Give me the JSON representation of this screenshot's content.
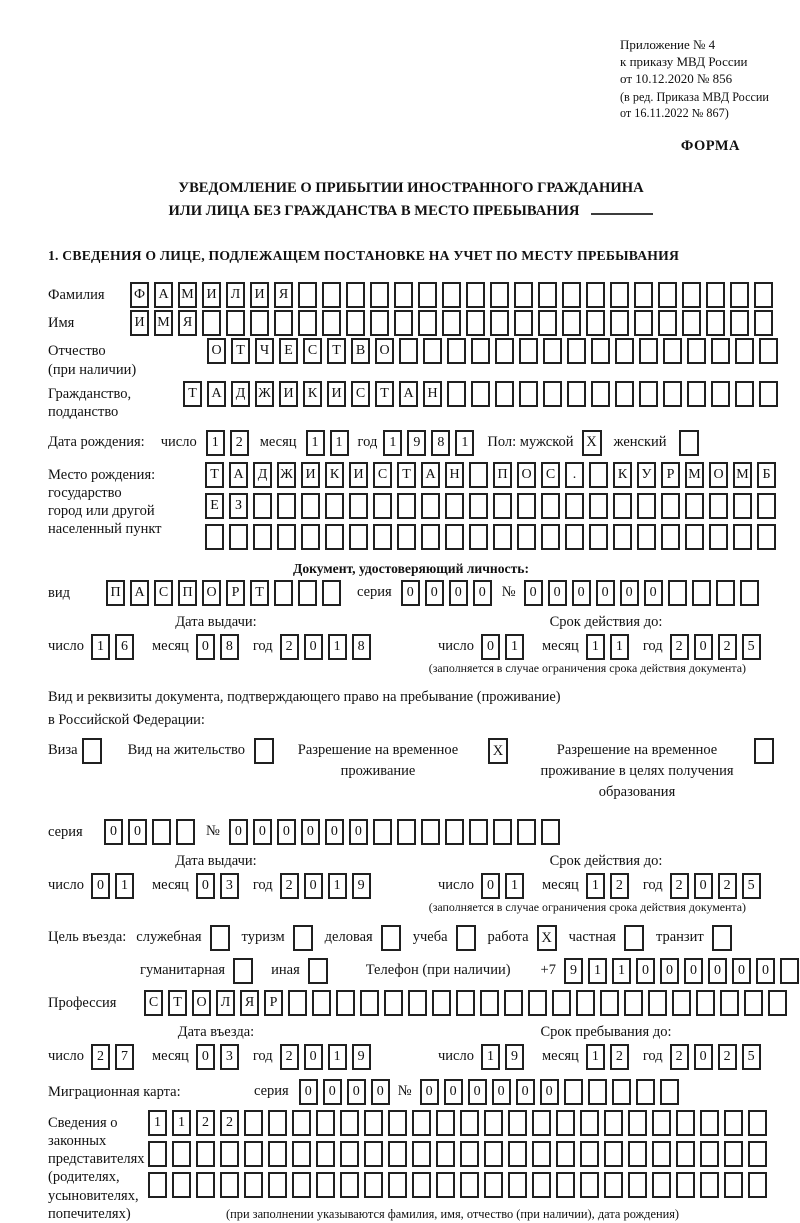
{
  "header": {
    "line1": "Приложение № 4",
    "line2": "к приказу МВД России",
    "line3": "от 10.12.2020 № 856",
    "sub1": "(в ред. Приказа МВД России",
    "sub2": "от 16.11.2022 № 867)",
    "forma": "ФОРМА"
  },
  "title": {
    "line1": "УВЕДОМЛЕНИЕ О ПРИБЫТИИ ИНОСТРАННОГО ГРАЖДАНИНА",
    "line2": "ИЛИ ЛИЦА БЕЗ ГРАЖДАНСТВА В МЕСТО ПРЕБЫВАНИЯ"
  },
  "section1_heading": "1. СВЕДЕНИЯ О ЛИЦЕ, ПОДЛЕЖАЩЕМ ПОСТАНОВКЕ НА УЧЕТ ПО МЕСТУ ПРЕБЫВАНИЯ",
  "common": {
    "day": "число",
    "month": "месяц",
    "year": "год",
    "series": "серия",
    "number": "№"
  },
  "rows": {
    "surname": {
      "label": "Фамилия",
      "boxes": {
        "value": "ФАМИЛИЯ",
        "cells": 27
      }
    },
    "name": {
      "label": "Имя",
      "boxes": {
        "value": "ИМЯ",
        "cells": 27
      }
    },
    "patronymic": {
      "label1": "Отчество",
      "label2": "(при наличии)",
      "boxes": {
        "value": "ОТЧЕСТВО",
        "cells": 24
      }
    },
    "citizenship": {
      "label1": "Гражданство,",
      "label2": "подданство",
      "boxes": {
        "value": "ТАДЖИКИСТАН",
        "cells": 25
      }
    },
    "birth_date": {
      "label": "Дата рождения:",
      "day": {
        "value": "12",
        "cells": 2
      },
      "month": {
        "value": "11",
        "cells": 2
      },
      "year": {
        "value": "1981",
        "cells": 4
      },
      "sex_label": "Пол: мужской",
      "male_checked": true,
      "female_label": "женский",
      "female_checked": false
    },
    "birth_place": {
      "label1": "Место рождения:",
      "label2": "государство",
      "label3": "город или другой",
      "label4": "населенный пункт",
      "line1": {
        "value": "ТАДЖИКИСТАН ПОС. КУРМОМБ",
        "cells": 24
      },
      "line2": {
        "value": "ЕЗ",
        "cells": 24
      },
      "line3": {
        "value": "",
        "cells": 24
      }
    },
    "identity_doc": {
      "heading": "Документ, удостоверяющий личность:",
      "kind_label": "вид",
      "kind": {
        "value": "ПАСПОРТ",
        "cells": 10
      },
      "series": {
        "value": "0000",
        "cells": 4
      },
      "number": {
        "value": "000000",
        "cells": 10
      }
    },
    "issue1": {
      "title": "Дата выдачи:",
      "day": {
        "value": "16",
        "cells": 2
      },
      "month": {
        "value": "08",
        "cells": 2
      },
      "year": {
        "value": "2018",
        "cells": 4
      }
    },
    "valid1": {
      "title": "Срок действия до:",
      "day": {
        "value": "01",
        "cells": 2
      },
      "month": {
        "value": "11",
        "cells": 2
      },
      "year": {
        "value": "2025",
        "cells": 4
      },
      "note": "(заполняется в случае ограничения срока действия документа)"
    },
    "residence_doc": {
      "line1": "Вид и реквизиты документа, подтверждающего право на пребывание (проживание)",
      "line2": "в Российской Федерации:",
      "options": [
        {
          "label": "Виза",
          "checked": false
        },
        {
          "label": "Вид на жительство",
          "checked": false
        },
        {
          "label": "Разрешение на временное проживание",
          "checked": true
        },
        {
          "label": "Разрешение на временное проживание в целях получения образования",
          "checked": false
        }
      ],
      "series": {
        "value": "00",
        "cells": 4
      },
      "number": {
        "value": "000000",
        "cells": 14
      }
    },
    "issue2": {
      "title": "Дата выдачи:",
      "day": {
        "value": "01",
        "cells": 2
      },
      "month": {
        "value": "03",
        "cells": 2
      },
      "year": {
        "value": "2019",
        "cells": 4
      }
    },
    "valid2": {
      "title": "Срок действия до:",
      "day": {
        "value": "01",
        "cells": 2
      },
      "month": {
        "value": "12",
        "cells": 2
      },
      "year": {
        "value": "2025",
        "cells": 4
      },
      "note": "(заполняется в случае ограничения срока действия документа)"
    },
    "purpose": {
      "label": "Цель въезда:",
      "options_line1": [
        {
          "label": "служебная",
          "checked": false
        },
        {
          "label": "туризм",
          "checked": false
        },
        {
          "label": "деловая",
          "checked": false
        },
        {
          "label": "учеба",
          "checked": false
        },
        {
          "label": "работа",
          "checked": true
        },
        {
          "label": "частная",
          "checked": false
        },
        {
          "label": "транзит",
          "checked": false
        }
      ],
      "options_line2": [
        {
          "label": "гуманитарная",
          "checked": false
        },
        {
          "label": "иная",
          "checked": false
        }
      ],
      "phone_label": "Телефон (при наличии)",
      "phone_prefix": "+7",
      "phone": {
        "value": "911000000",
        "cells": 10
      }
    },
    "profession": {
      "label": "Профессия",
      "boxes": {
        "value": "СТОЛЯР",
        "cells": 27
      }
    },
    "entry_date": {
      "title": "Дата въезда:",
      "day": {
        "value": "27",
        "cells": 2
      },
      "month": {
        "value": "03",
        "cells": 2
      },
      "year": {
        "value": "2019",
        "cells": 4
      }
    },
    "stay_until": {
      "title": "Срок пребывания до:",
      "day": {
        "value": "19",
        "cells": 2
      },
      "month": {
        "value": "12",
        "cells": 2
      },
      "year": {
        "value": "2025",
        "cells": 4
      }
    },
    "migration_card": {
      "label": "Миграционная карта:",
      "series": {
        "value": "0000",
        "cells": 4
      },
      "number": {
        "value": "000000",
        "cells": 11
      }
    },
    "representatives": {
      "label1": "Сведения о",
      "label2": "законных",
      "label3": "представителях",
      "label4": "(родителях,",
      "label5": "усыновителях,",
      "label6": "попечителях)",
      "line1": {
        "value": "1122",
        "cells": 26
      },
      "line2": {
        "value": "",
        "cells": 26
      },
      "line3": {
        "value": "",
        "cells": 26
      },
      "note": "(при заполнении указываются фамилия, имя, отчество (при наличии), дата рождения)"
    }
  }
}
